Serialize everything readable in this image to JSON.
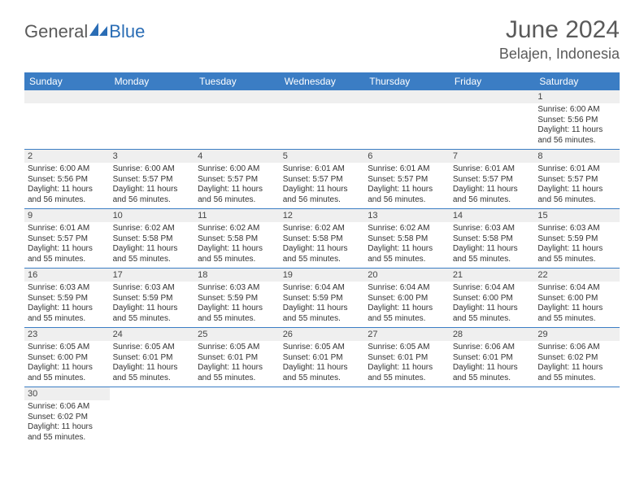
{
  "header": {
    "logo_part1": "General",
    "logo_part2": "Blue",
    "title": "June 2024",
    "location": "Belajen, Indonesia"
  },
  "colors": {
    "header_bg": "#3b7dc4",
    "header_text": "#ffffff",
    "daynum_bg": "#efefef",
    "rule": "#3b7dc4",
    "body_text": "#333333",
    "logo_gray": "#5a5a5a",
    "logo_blue": "#2a6db5"
  },
  "days_of_week": [
    "Sunday",
    "Monday",
    "Tuesday",
    "Wednesday",
    "Thursday",
    "Friday",
    "Saturday"
  ],
  "weeks": [
    [
      null,
      null,
      null,
      null,
      null,
      null,
      {
        "n": "1",
        "sr": "Sunrise: 6:00 AM",
        "ss": "Sunset: 5:56 PM",
        "dl": "Daylight: 11 hours and 56 minutes."
      }
    ],
    [
      {
        "n": "2",
        "sr": "Sunrise: 6:00 AM",
        "ss": "Sunset: 5:56 PM",
        "dl": "Daylight: 11 hours and 56 minutes."
      },
      {
        "n": "3",
        "sr": "Sunrise: 6:00 AM",
        "ss": "Sunset: 5:57 PM",
        "dl": "Daylight: 11 hours and 56 minutes."
      },
      {
        "n": "4",
        "sr": "Sunrise: 6:00 AM",
        "ss": "Sunset: 5:57 PM",
        "dl": "Daylight: 11 hours and 56 minutes."
      },
      {
        "n": "5",
        "sr": "Sunrise: 6:01 AM",
        "ss": "Sunset: 5:57 PM",
        "dl": "Daylight: 11 hours and 56 minutes."
      },
      {
        "n": "6",
        "sr": "Sunrise: 6:01 AM",
        "ss": "Sunset: 5:57 PM",
        "dl": "Daylight: 11 hours and 56 minutes."
      },
      {
        "n": "7",
        "sr": "Sunrise: 6:01 AM",
        "ss": "Sunset: 5:57 PM",
        "dl": "Daylight: 11 hours and 56 minutes."
      },
      {
        "n": "8",
        "sr": "Sunrise: 6:01 AM",
        "ss": "Sunset: 5:57 PM",
        "dl": "Daylight: 11 hours and 56 minutes."
      }
    ],
    [
      {
        "n": "9",
        "sr": "Sunrise: 6:01 AM",
        "ss": "Sunset: 5:57 PM",
        "dl": "Daylight: 11 hours and 55 minutes."
      },
      {
        "n": "10",
        "sr": "Sunrise: 6:02 AM",
        "ss": "Sunset: 5:58 PM",
        "dl": "Daylight: 11 hours and 55 minutes."
      },
      {
        "n": "11",
        "sr": "Sunrise: 6:02 AM",
        "ss": "Sunset: 5:58 PM",
        "dl": "Daylight: 11 hours and 55 minutes."
      },
      {
        "n": "12",
        "sr": "Sunrise: 6:02 AM",
        "ss": "Sunset: 5:58 PM",
        "dl": "Daylight: 11 hours and 55 minutes."
      },
      {
        "n": "13",
        "sr": "Sunrise: 6:02 AM",
        "ss": "Sunset: 5:58 PM",
        "dl": "Daylight: 11 hours and 55 minutes."
      },
      {
        "n": "14",
        "sr": "Sunrise: 6:03 AM",
        "ss": "Sunset: 5:58 PM",
        "dl": "Daylight: 11 hours and 55 minutes."
      },
      {
        "n": "15",
        "sr": "Sunrise: 6:03 AM",
        "ss": "Sunset: 5:59 PM",
        "dl": "Daylight: 11 hours and 55 minutes."
      }
    ],
    [
      {
        "n": "16",
        "sr": "Sunrise: 6:03 AM",
        "ss": "Sunset: 5:59 PM",
        "dl": "Daylight: 11 hours and 55 minutes."
      },
      {
        "n": "17",
        "sr": "Sunrise: 6:03 AM",
        "ss": "Sunset: 5:59 PM",
        "dl": "Daylight: 11 hours and 55 minutes."
      },
      {
        "n": "18",
        "sr": "Sunrise: 6:03 AM",
        "ss": "Sunset: 5:59 PM",
        "dl": "Daylight: 11 hours and 55 minutes."
      },
      {
        "n": "19",
        "sr": "Sunrise: 6:04 AM",
        "ss": "Sunset: 5:59 PM",
        "dl": "Daylight: 11 hours and 55 minutes."
      },
      {
        "n": "20",
        "sr": "Sunrise: 6:04 AM",
        "ss": "Sunset: 6:00 PM",
        "dl": "Daylight: 11 hours and 55 minutes."
      },
      {
        "n": "21",
        "sr": "Sunrise: 6:04 AM",
        "ss": "Sunset: 6:00 PM",
        "dl": "Daylight: 11 hours and 55 minutes."
      },
      {
        "n": "22",
        "sr": "Sunrise: 6:04 AM",
        "ss": "Sunset: 6:00 PM",
        "dl": "Daylight: 11 hours and 55 minutes."
      }
    ],
    [
      {
        "n": "23",
        "sr": "Sunrise: 6:05 AM",
        "ss": "Sunset: 6:00 PM",
        "dl": "Daylight: 11 hours and 55 minutes."
      },
      {
        "n": "24",
        "sr": "Sunrise: 6:05 AM",
        "ss": "Sunset: 6:01 PM",
        "dl": "Daylight: 11 hours and 55 minutes."
      },
      {
        "n": "25",
        "sr": "Sunrise: 6:05 AM",
        "ss": "Sunset: 6:01 PM",
        "dl": "Daylight: 11 hours and 55 minutes."
      },
      {
        "n": "26",
        "sr": "Sunrise: 6:05 AM",
        "ss": "Sunset: 6:01 PM",
        "dl": "Daylight: 11 hours and 55 minutes."
      },
      {
        "n": "27",
        "sr": "Sunrise: 6:05 AM",
        "ss": "Sunset: 6:01 PM",
        "dl": "Daylight: 11 hours and 55 minutes."
      },
      {
        "n": "28",
        "sr": "Sunrise: 6:06 AM",
        "ss": "Sunset: 6:01 PM",
        "dl": "Daylight: 11 hours and 55 minutes."
      },
      {
        "n": "29",
        "sr": "Sunrise: 6:06 AM",
        "ss": "Sunset: 6:02 PM",
        "dl": "Daylight: 11 hours and 55 minutes."
      }
    ],
    [
      {
        "n": "30",
        "sr": "Sunrise: 6:06 AM",
        "ss": "Sunset: 6:02 PM",
        "dl": "Daylight: 11 hours and 55 minutes."
      },
      null,
      null,
      null,
      null,
      null,
      null
    ]
  ]
}
